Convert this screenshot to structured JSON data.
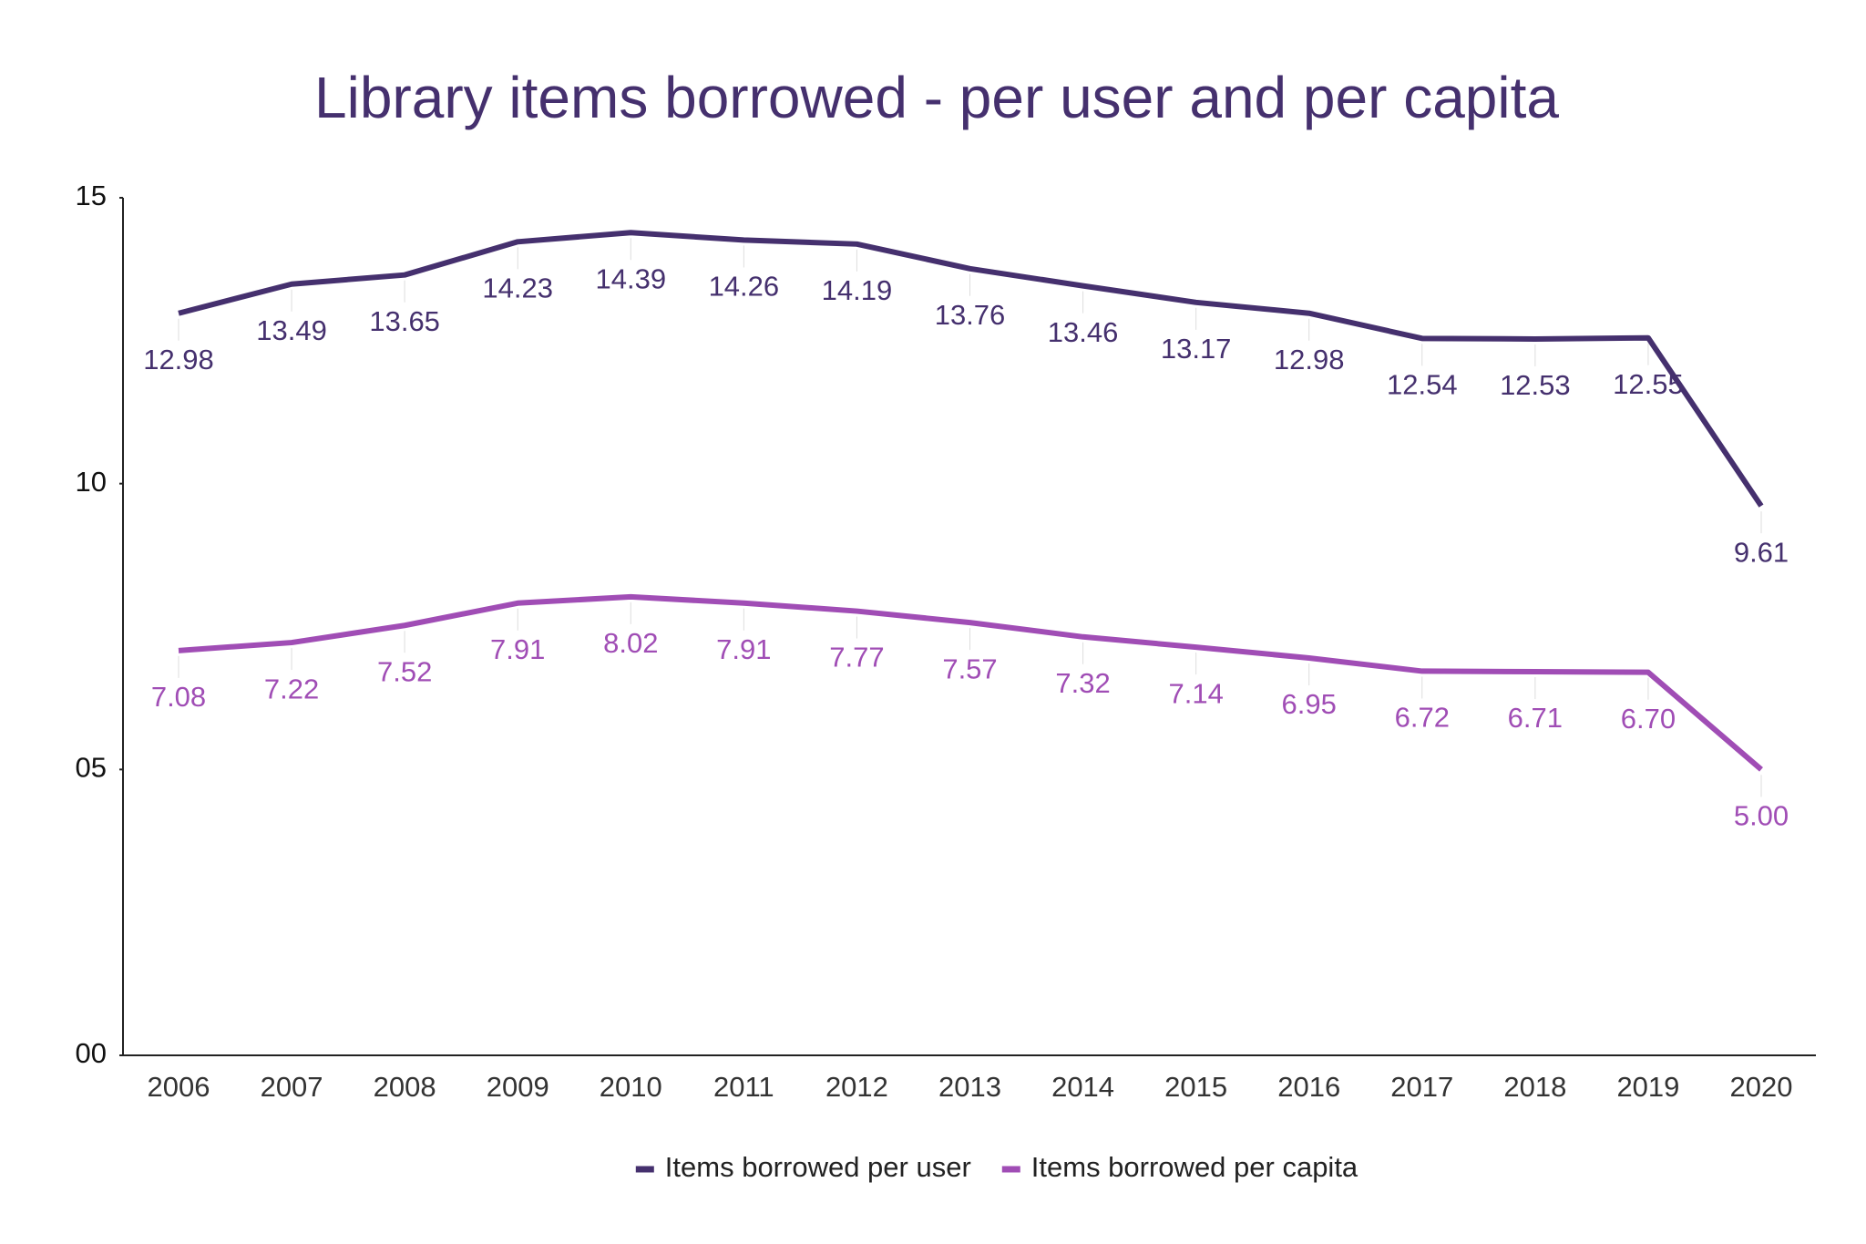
{
  "chart_data": {
    "type": "line",
    "title": "Library items borrowed - per user and per capita",
    "categories": [
      "2006",
      "2007",
      "2008",
      "2009",
      "2010",
      "2011",
      "2012",
      "2013",
      "2014",
      "2015",
      "2016",
      "2017",
      "2018",
      "2019",
      "2020"
    ],
    "series": [
      {
        "name": "Items borrowed per user",
        "color": "#45306e",
        "values": [
          12.98,
          13.49,
          13.65,
          14.23,
          14.39,
          14.26,
          14.19,
          13.76,
          13.46,
          13.17,
          12.98,
          12.54,
          12.53,
          12.55,
          9.61
        ]
      },
      {
        "name": "Items borrowed per capita",
        "color": "#a04db5",
        "values": [
          7.08,
          7.22,
          7.52,
          7.91,
          8.02,
          7.91,
          7.77,
          7.57,
          7.32,
          7.14,
          6.95,
          6.72,
          6.71,
          6.7,
          5
        ],
        "value_labels": [
          "7.08",
          "7.22",
          "7.52",
          "7.91",
          "8.02",
          "7.91",
          "7.77",
          "7.57",
          "7.32",
          "7.14",
          "6.95",
          "6.72",
          "6.71",
          "6.70",
          "5.00"
        ]
      }
    ],
    "ylim": [
      0,
      15
    ],
    "yticks": [
      {
        "value": 0,
        "label": "00"
      },
      {
        "value": 5,
        "label": "05"
      },
      10,
      15
    ],
    "grid": false,
    "legend": "bottom"
  }
}
